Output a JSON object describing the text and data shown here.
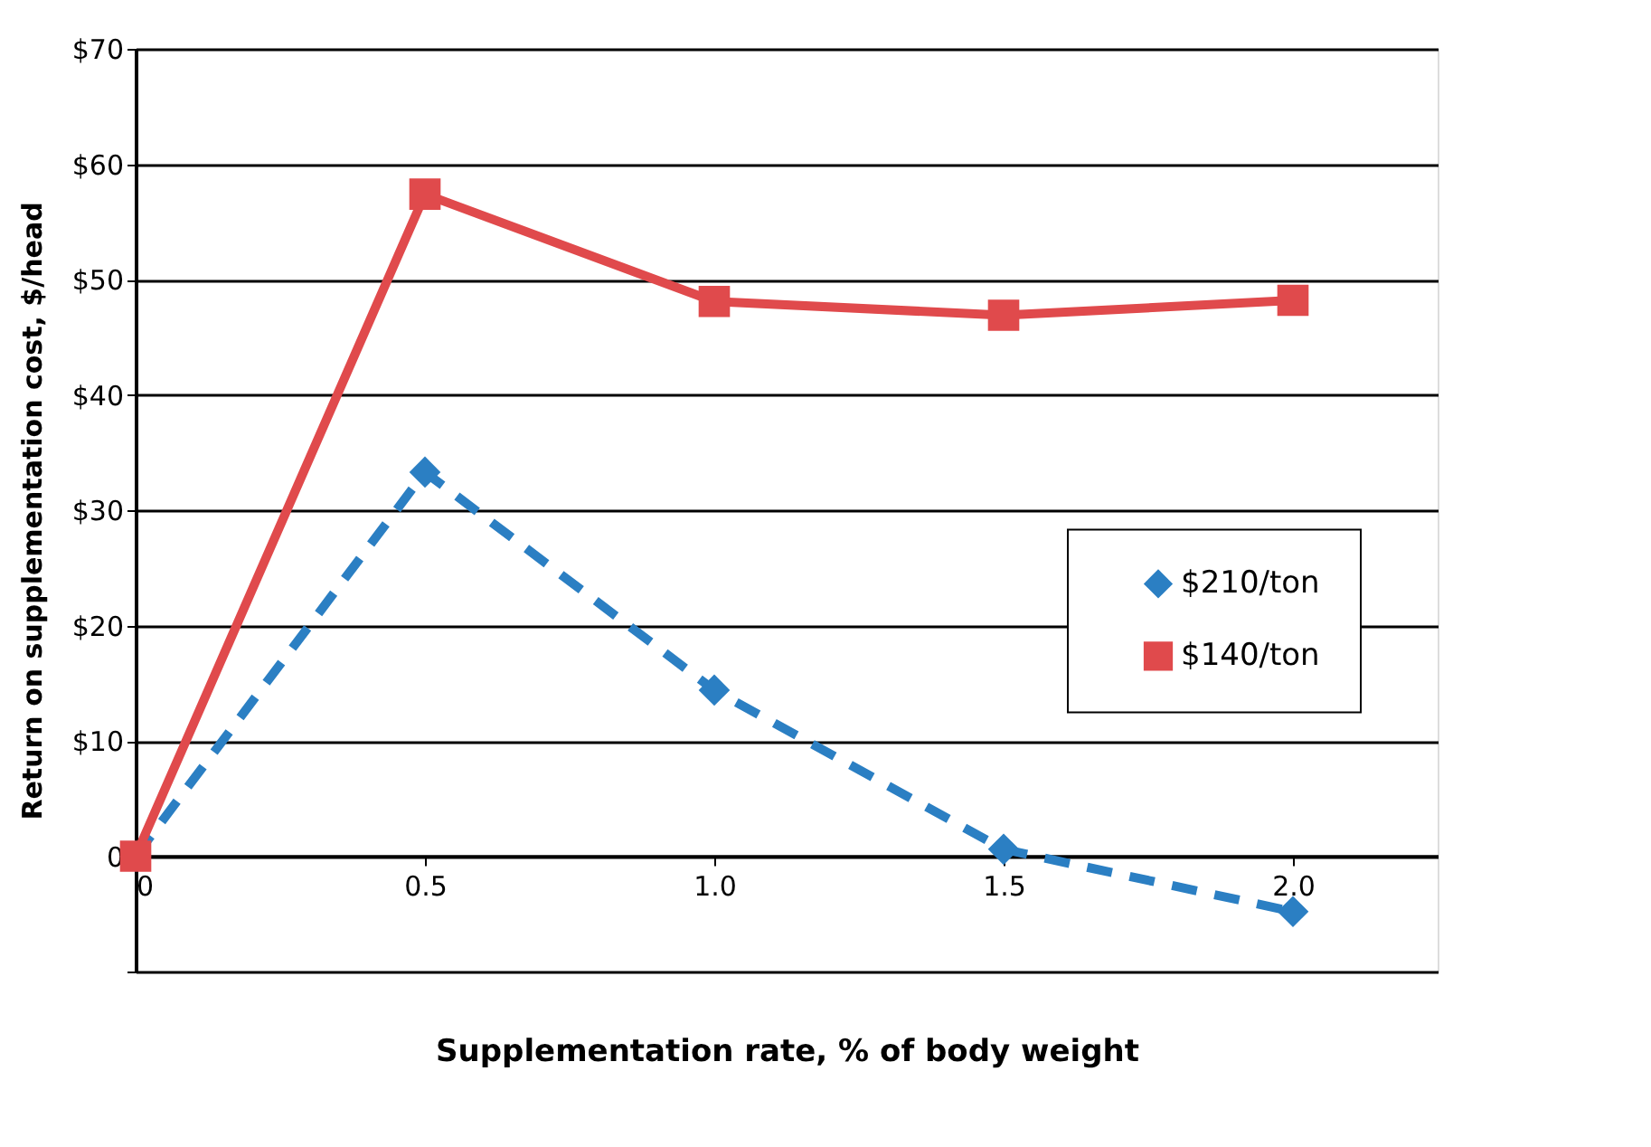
{
  "chart_data": {
    "type": "line",
    "xlabel": "Supplementation rate, % of body weight",
    "ylabel": "Return on supplementation cost, $/head",
    "x": [
      0,
      0.5,
      1.0,
      1.5,
      2.0
    ],
    "series": [
      {
        "name": "$210/ton",
        "color": "#2b7fc3",
        "values": [
          0,
          33.3,
          14.4,
          0.6,
          -4.8
        ],
        "marker": "diamond",
        "line_style": "dashed"
      },
      {
        "name": "$140/ton",
        "color": "#e04a4c",
        "values": [
          0,
          57.4,
          48.1,
          46.9,
          48.2
        ],
        "marker": "square",
        "line_style": "solid"
      }
    ],
    "xlim": [
      0,
      2.25
    ],
    "ylim": [
      -10,
      70
    ],
    "xticks": [
      {
        "value": 0,
        "label": "0"
      },
      0.5,
      {
        "value": 1,
        "label": "1.0"
      },
      1.5,
      {
        "value": 2,
        "label": "2.0"
      }
    ],
    "yticks": [
      {
        "value": -10,
        "label": null
      },
      0,
      {
        "value": 10,
        "label": "$10"
      },
      {
        "value": 20,
        "label": "$20"
      },
      {
        "value": 30,
        "label": "$30"
      },
      {
        "value": 40,
        "label": "$40"
      },
      {
        "value": 50,
        "label": "$50"
      },
      {
        "value": 60,
        "label": "$60"
      },
      {
        "value": 70,
        "label": "$70"
      }
    ],
    "grid": "y",
    "legend": "right"
  }
}
